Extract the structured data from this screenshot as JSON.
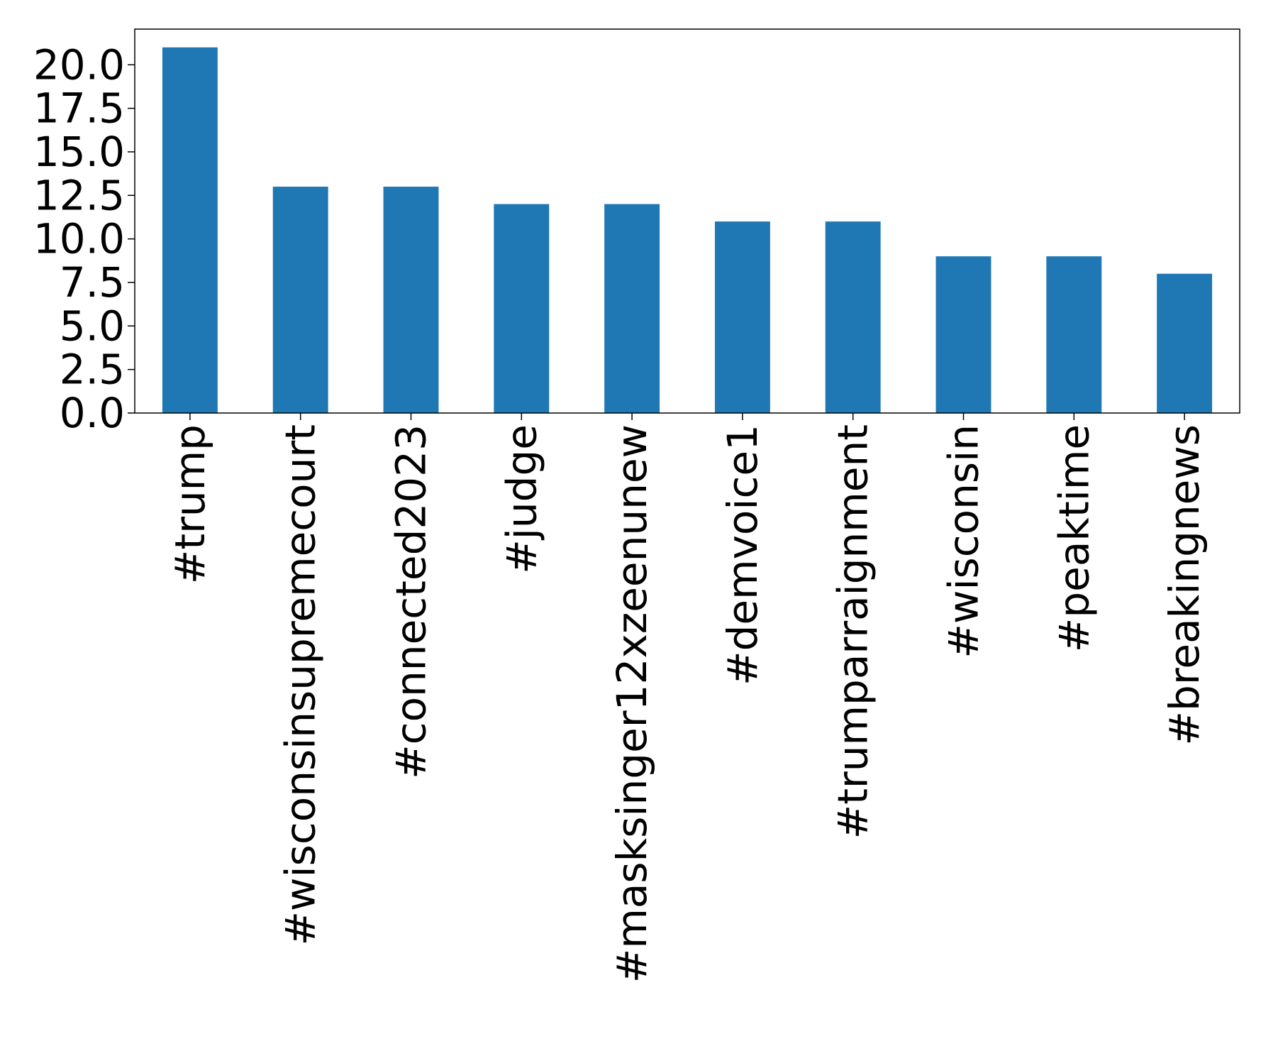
{
  "chart_data": {
    "type": "bar",
    "title": "",
    "xlabel": "",
    "ylabel": "",
    "categories": [
      "#trump",
      "#wisconsinsupremecourt",
      "#connected2023",
      "#judge",
      "#masksinger12xzeenunew",
      "#demvoice1",
      "#trumparraignment",
      "#wisconsin",
      "#peaktime",
      "#breakingnews"
    ],
    "values": [
      21,
      13,
      13,
      12,
      12,
      11,
      11,
      9,
      9,
      8
    ],
    "ylim": [
      0,
      22.05
    ],
    "yticks": [
      0.0,
      2.5,
      5.0,
      7.5,
      10.0,
      12.5,
      15.0,
      17.5,
      20.0
    ],
    "ytick_labels": [
      "0.0",
      "2.5",
      "5.0",
      "7.5",
      "10.0",
      "12.5",
      "15.0",
      "17.5",
      "20.0"
    ],
    "bar_color": "#1f77b4",
    "grid": false,
    "legend": "none"
  }
}
